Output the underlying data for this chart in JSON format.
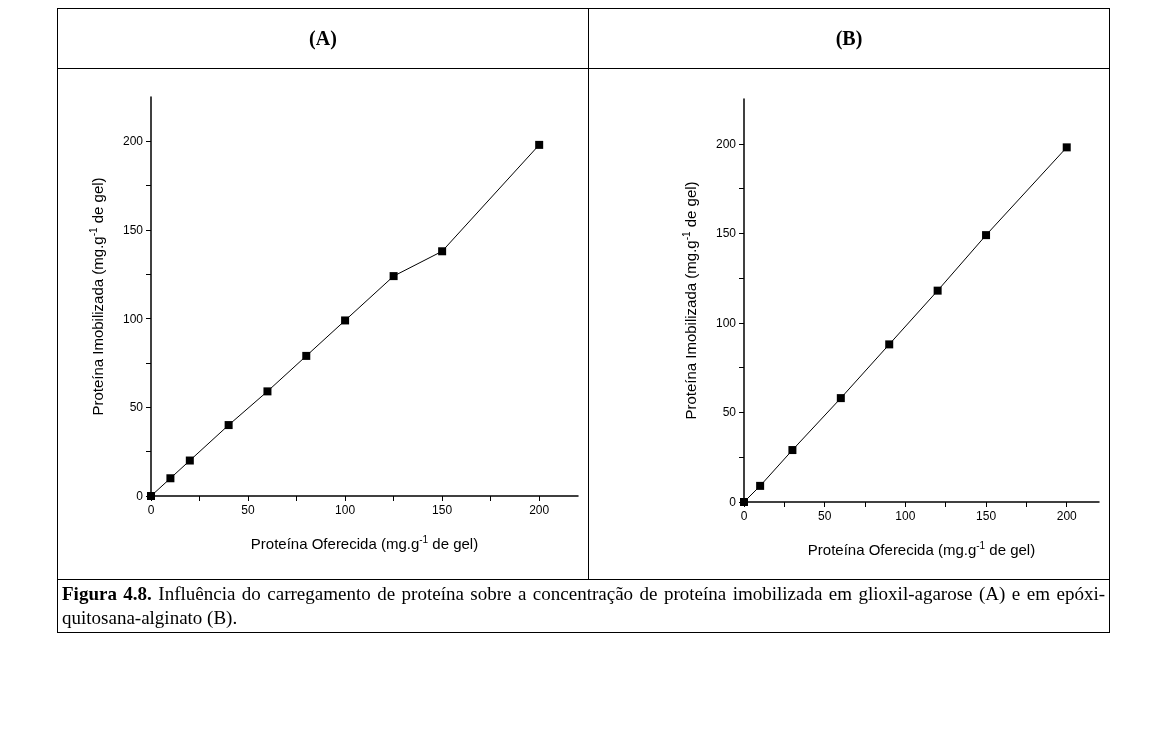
{
  "chart_data": [
    {
      "type": "line",
      "title": "(A)",
      "xlabel": "Proteína Oferecida (mg.g$^{-1}$ de gel)",
      "ylabel": "Proteína Imobilizada (mg.g$^{-1}$ de gel)",
      "x": [
        0,
        10,
        20,
        40,
        60,
        80,
        100,
        125,
        150,
        200
      ],
      "series": [
        {
          "color": "#000000",
          "values": [
            0,
            10,
            20,
            40,
            59,
            79,
            99,
            124,
            138,
            198
          ]
        }
      ],
      "xlim": [
        0,
        220
      ],
      "ylim": [
        0,
        225
      ],
      "xticks": [
        0,
        {
          "value": 25,
          "label": null
        },
        50,
        {
          "value": 75,
          "label": null
        },
        100,
        {
          "value": 125,
          "label": null
        },
        150,
        {
          "value": 175,
          "label": null
        },
        200
      ],
      "yticks": [
        0,
        {
          "value": 25,
          "label": null
        },
        50,
        {
          "value": 75,
          "label": null
        },
        100,
        {
          "value": 125,
          "label": null
        },
        150,
        {
          "value": 175,
          "label": null
        },
        200
      ],
      "grid": false,
      "marker": "square",
      "line_style": "solid",
      "annotations": [
        "Figura 4.8. Influência do carregamento de proteína sobre a concentração de proteína imobilizada em glioxil-agarose (A) e em epóxi-quitosana-alginato (B)."
      ]
    },
    {
      "type": "line",
      "title": "(B)",
      "xlabel": "Proteína Oferecida (mg.g$^{-1}$ de gel)",
      "ylabel": "Proteína Imobilizada (mg.g$^{-1}$ de gel)",
      "x": [
        0,
        10,
        30,
        60,
        90,
        120,
        150,
        200
      ],
      "series": [
        {
          "color": "#000000",
          "values": [
            0,
            9,
            29,
            58,
            88,
            118,
            149,
            198
          ]
        }
      ],
      "xlim": [
        0,
        220
      ],
      "ylim": [
        0,
        225
      ],
      "xticks": [
        0,
        {
          "value": 25,
          "label": null
        },
        50,
        {
          "value": 75,
          "label": null
        },
        100,
        {
          "value": 125,
          "label": null
        },
        150,
        {
          "value": 175,
          "label": null
        },
        200
      ],
      "yticks": [
        0,
        {
          "value": 25,
          "label": null
        },
        50,
        {
          "value": 75,
          "label": null
        },
        100,
        {
          "value": 125,
          "label": null
        },
        150,
        {
          "value": 175,
          "label": null
        },
        200
      ],
      "grid": false,
      "marker": "square",
      "line_style": "solid"
    }
  ]
}
